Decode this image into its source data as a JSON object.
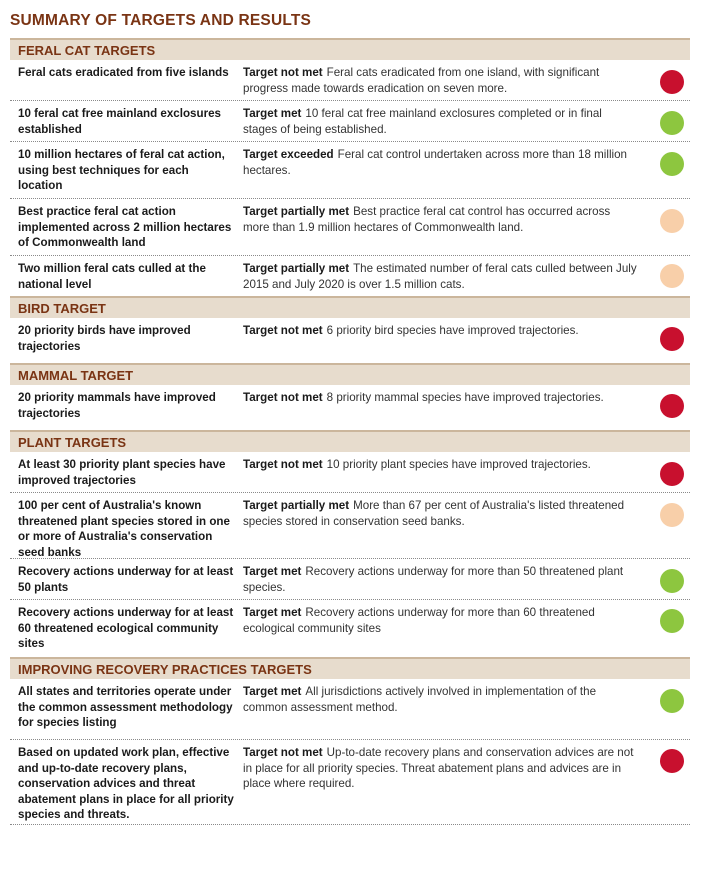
{
  "title": "SUMMARY OF TARGETS AND RESULTS",
  "status_colors": {
    "red": "#c8102e",
    "green": "#8dc63f",
    "peach": "#f8cfa9"
  },
  "sections": [
    {
      "heading": "FERAL CAT TARGETS",
      "rows": [
        {
          "target": "Feral cats eradicated from five islands",
          "verdict": "Target not met",
          "detail": "Feral cats eradicated from one island, with significant progress made towards eradication on seven more.",
          "status": "red"
        },
        {
          "target": "10 feral cat free mainland exclosures established",
          "verdict": "Target met",
          "detail": "10 feral cat free mainland exclosures completed or in final stages of being established.",
          "status": "green"
        },
        {
          "target": "10 million hectares of feral cat action, using best techniques for each location",
          "verdict": "Target exceeded",
          "detail": "Feral cat control undertaken across more than 18 million hectares.",
          "status": "green"
        },
        {
          "target": "Best practice feral cat action implemented across 2 million hectares of Commonwealth land",
          "verdict": "Target partially met",
          "detail": "Best practice feral cat control has occurred across more than 1.9 million hectares of Commonwealth land.",
          "status": "peach"
        },
        {
          "target": "Two million feral cats culled at the national level",
          "verdict": "Target partially met",
          "detail": "The estimated number of feral cats culled between July 2015 and July 2020 is over 1.5 million cats.",
          "status": "peach"
        }
      ]
    },
    {
      "heading": "BIRD TARGET",
      "rows": [
        {
          "target": "20 priority birds have improved trajectories",
          "verdict": "Target not met",
          "detail": "6 priority bird species have improved trajectories.",
          "status": "red"
        }
      ]
    },
    {
      "heading": "MAMMAL TARGET",
      "rows": [
        {
          "target": "20 priority mammals have improved trajectories",
          "verdict": "Target not met",
          "detail": "8 priority mammal species have improved trajectories.",
          "status": "red"
        }
      ]
    },
    {
      "heading": "PLANT TARGETS",
      "rows": [
        {
          "target": "At least 30 priority plant species have improved trajectories",
          "verdict": "Target not met",
          "detail": "10 priority plant species have improved trajectories.",
          "status": "red"
        },
        {
          "target": "100 per cent of Australia's known threatened plant species stored in one or more of Australia's conservation seed banks",
          "verdict": "Target partially met",
          "detail": "More than 67 per cent of Australia's listed threatened species stored in conservation seed banks.",
          "status": "peach"
        },
        {
          "target": "Recovery actions underway for at least 50 plants",
          "verdict": "Target met",
          "detail": "Recovery actions underway for more than 50 threatened plant species.",
          "status": "green"
        },
        {
          "target": "Recovery actions underway for at least 60 threatened ecological community sites",
          "verdict": "Target met",
          "detail": "Recovery actions underway for more than 60 threatened ecological community sites",
          "status": "green"
        }
      ]
    },
    {
      "heading": "IMPROVING RECOVERY PRACTICES TARGETS",
      "rows": [
        {
          "target": "All states and territories operate under the common assessment methodology for species listing",
          "verdict": "Target met",
          "detail": "All jurisdictions actively involved in implementation of the common assessment method.",
          "status": "green"
        },
        {
          "target": "Based on updated work plan, effective and up-to-date recovery plans, conservation advices and threat abatement plans in place for all priority species and threats.",
          "verdict": "Target not met",
          "detail": "Up-to-date recovery plans and conservation advices are not in place for all priority species. Threat abatement plans and advices are in place where required.",
          "status": "red"
        }
      ]
    }
  ]
}
